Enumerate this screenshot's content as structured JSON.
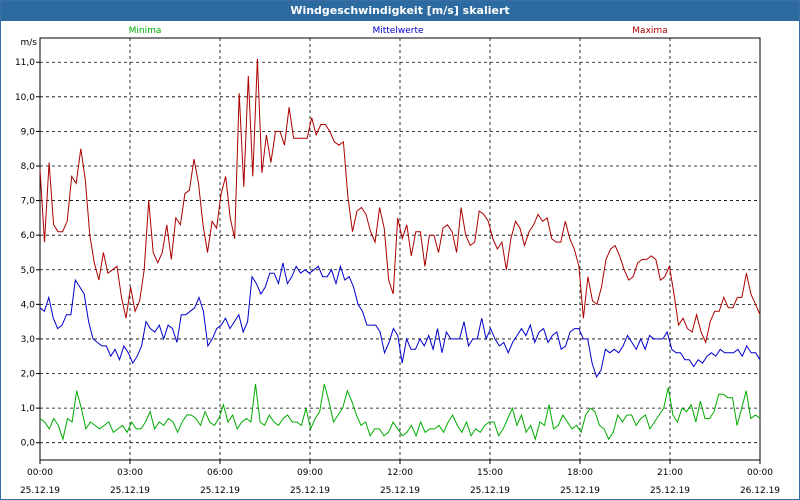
{
  "window": {
    "title": "Windgeschwindigkeit [m/s] skaliert"
  },
  "chart_data": {
    "type": "line",
    "ylabel": "m/s",
    "ylim": [
      -0.5,
      11.7
    ],
    "yticks": [
      "0,0",
      "1,0",
      "2,0",
      "3,0",
      "4,0",
      "5,0",
      "6,0",
      "7,0",
      "8,0",
      "9,0",
      "10,0",
      "11,0"
    ],
    "xlim": [
      0,
      24
    ],
    "xticks": [
      {
        "time": "00:00",
        "date": "25.12.19"
      },
      {
        "time": "03:00",
        "date": "25.12.19"
      },
      {
        "time": "06:00",
        "date": "25.12.19"
      },
      {
        "time": "09:00",
        "date": "25.12.19"
      },
      {
        "time": "12:00",
        "date": "25.12.19"
      },
      {
        "time": "15:00",
        "date": "25.12.19"
      },
      {
        "time": "18:00",
        "date": "25.12.19"
      },
      {
        "time": "21:00",
        "date": "25.12.19"
      },
      {
        "time": "00:00",
        "date": "26.12.19"
      }
    ],
    "grid": true,
    "series": [
      {
        "name": "Minima",
        "color": "#00aa00",
        "values": [
          0.7,
          0.6,
          0.4,
          0.7,
          0.5,
          0.1,
          0.7,
          0.6,
          1.5,
          1.0,
          0.4,
          0.6,
          0.5,
          0.4,
          0.5,
          0.6,
          0.3,
          0.4,
          0.5,
          0.3,
          0.6,
          0.4,
          0.4,
          0.6,
          0.9,
          0.4,
          0.6,
          0.5,
          0.7,
          0.6,
          0.3,
          0.6,
          0.8,
          0.8,
          0.7,
          0.5,
          0.9,
          0.6,
          0.5,
          0.7,
          1.1,
          0.6,
          0.8,
          0.4,
          0.6,
          0.7,
          0.6,
          1.7,
          0.6,
          0.5,
          0.8,
          0.6,
          0.5,
          0.7,
          0.8,
          0.6,
          0.6,
          0.5,
          1.0,
          0.4,
          0.7,
          0.9,
          1.7,
          1.2,
          0.6,
          0.8,
          1.0,
          1.5,
          1.2,
          0.8,
          0.5,
          0.6,
          0.2,
          0.4,
          0.4,
          0.2,
          0.3,
          0.6,
          0.4,
          0.2,
          0.3,
          0.5,
          0.2,
          0.6,
          0.3,
          0.4,
          0.4,
          0.5,
          0.3,
          0.6,
          0.8,
          0.5,
          0.3,
          0.6,
          0.2,
          0.4,
          0.3,
          0.5,
          0.6,
          0.6,
          0.2,
          0.4,
          0.7,
          1.0,
          0.5,
          0.8,
          0.3,
          0.5,
          0.1,
          0.6,
          0.5,
          1.1,
          0.4,
          0.5,
          0.8,
          0.6,
          0.4,
          0.5,
          0.3,
          0.8,
          1.0,
          0.9,
          0.5,
          0.4,
          0.1,
          0.3,
          0.8,
          0.6,
          0.8,
          0.8,
          0.5,
          0.7,
          0.8,
          0.4,
          0.6,
          0.8,
          1.0,
          1.6,
          0.8,
          0.6,
          1.0,
          0.9,
          1.1,
          0.6,
          1.2,
          0.7,
          0.7,
          0.9,
          1.4,
          1.4,
          1.3,
          1.3,
          0.5,
          1.0,
          1.5,
          0.7,
          0.8,
          0.7
        ]
      },
      {
        "name": "Mittelwerte",
        "color": "#0000cc",
        "values": [
          3.9,
          3.8,
          4.2,
          3.6,
          3.3,
          3.4,
          3.7,
          3.7,
          4.7,
          4.5,
          4.3,
          3.5,
          3.0,
          2.9,
          2.8,
          2.8,
          2.5,
          2.7,
          2.4,
          2.8,
          2.6,
          2.3,
          2.5,
          2.8,
          3.5,
          3.3,
          3.2,
          3.4,
          3.0,
          3.4,
          3.3,
          2.9,
          3.7,
          3.7,
          3.8,
          3.9,
          4.2,
          3.8,
          2.8,
          3.0,
          3.3,
          3.4,
          3.6,
          3.3,
          3.5,
          3.7,
          3.2,
          3.5,
          4.8,
          4.6,
          4.3,
          4.5,
          4.9,
          4.9,
          4.6,
          5.2,
          4.6,
          4.8,
          5.1,
          4.9,
          5.0,
          4.9,
          5.0,
          5.1,
          4.8,
          4.8,
          5.0,
          4.6,
          5.1,
          4.7,
          4.8,
          4.5,
          4.0,
          3.8,
          3.4,
          3.4,
          3.4,
          3.2,
          2.6,
          2.9,
          3.3,
          3.1,
          2.3,
          3.0,
          2.7,
          2.7,
          3.0,
          2.8,
          3.1,
          2.7,
          3.3,
          2.6,
          3.2,
          3.0,
          3.0,
          3.0,
          3.5,
          2.8,
          3.0,
          3.0,
          3.6,
          3.0,
          3.3,
          3.0,
          2.8,
          2.9,
          2.6,
          2.9,
          3.1,
          3.3,
          3.1,
          3.4,
          2.9,
          3.2,
          3.3,
          2.9,
          3.1,
          3.2,
          2.7,
          2.8,
          3.2,
          3.3,
          3.3,
          3.0,
          3.0,
          2.3,
          1.9,
          2.1,
          2.7,
          2.6,
          2.7,
          2.6,
          2.8,
          3.1,
          2.9,
          2.7,
          3.0,
          2.7,
          3.1,
          3.0,
          3.0,
          3.0,
          3.2,
          2.7,
          2.6,
          2.6,
          2.4,
          2.4,
          2.2,
          2.4,
          2.3,
          2.5,
          2.6,
          2.5,
          2.7,
          2.6,
          2.6,
          2.6,
          2.7,
          2.5,
          2.8,
          2.6,
          2.6,
          2.4
        ]
      },
      {
        "name": "Maxima",
        "color": "#aa0000",
        "values": [
          7.9,
          5.8,
          8.1,
          6.3,
          6.1,
          6.1,
          6.4,
          7.7,
          7.5,
          8.5,
          7.6,
          6.0,
          5.2,
          4.7,
          5.5,
          4.9,
          5.0,
          5.1,
          4.2,
          3.6,
          4.5,
          3.8,
          4.1,
          5.0,
          7.0,
          5.5,
          5.2,
          5.5,
          6.3,
          5.3,
          6.5,
          6.3,
          7.2,
          7.3,
          8.2,
          7.5,
          6.3,
          5.5,
          6.4,
          6.2,
          7.2,
          7.7,
          6.5,
          5.9,
          10.1,
          7.4,
          10.6,
          7.7,
          11.1,
          7.8,
          8.9,
          8.1,
          9.0,
          9.0,
          8.6,
          9.7,
          8.8,
          8.8,
          8.8,
          8.8,
          9.4,
          8.9,
          9.2,
          9.2,
          9.0,
          8.7,
          8.6,
          8.7,
          7.1,
          6.1,
          6.7,
          6.8,
          6.6,
          6.1,
          5.8,
          6.8,
          6.2,
          4.7,
          4.3,
          6.5,
          5.9,
          6.3,
          5.4,
          6.1,
          6.1,
          5.1,
          6.0,
          6.0,
          5.5,
          6.2,
          6.3,
          6.1,
          5.5,
          6.8,
          6.0,
          5.7,
          5.8,
          6.7,
          6.6,
          6.4,
          5.9,
          5.6,
          5.8,
          5.0,
          5.9,
          6.4,
          6.2,
          5.7,
          6.1,
          6.3,
          6.6,
          6.4,
          6.5,
          5.9,
          5.8,
          5.8,
          6.4,
          5.9,
          5.6,
          5.1,
          3.6,
          4.8,
          4.1,
          4.0,
          4.5,
          5.3,
          5.6,
          5.7,
          5.4,
          5.0,
          4.7,
          4.8,
          5.2,
          5.3,
          5.3,
          5.4,
          5.3,
          4.7,
          4.8,
          5.1,
          4.3,
          3.4,
          3.6,
          3.3,
          3.2,
          3.7,
          3.2,
          2.9,
          3.5,
          3.8,
          3.8,
          4.2,
          3.9,
          3.9,
          4.2,
          4.2,
          4.9,
          4.3,
          4.0,
          3.7
        ]
      }
    ]
  }
}
